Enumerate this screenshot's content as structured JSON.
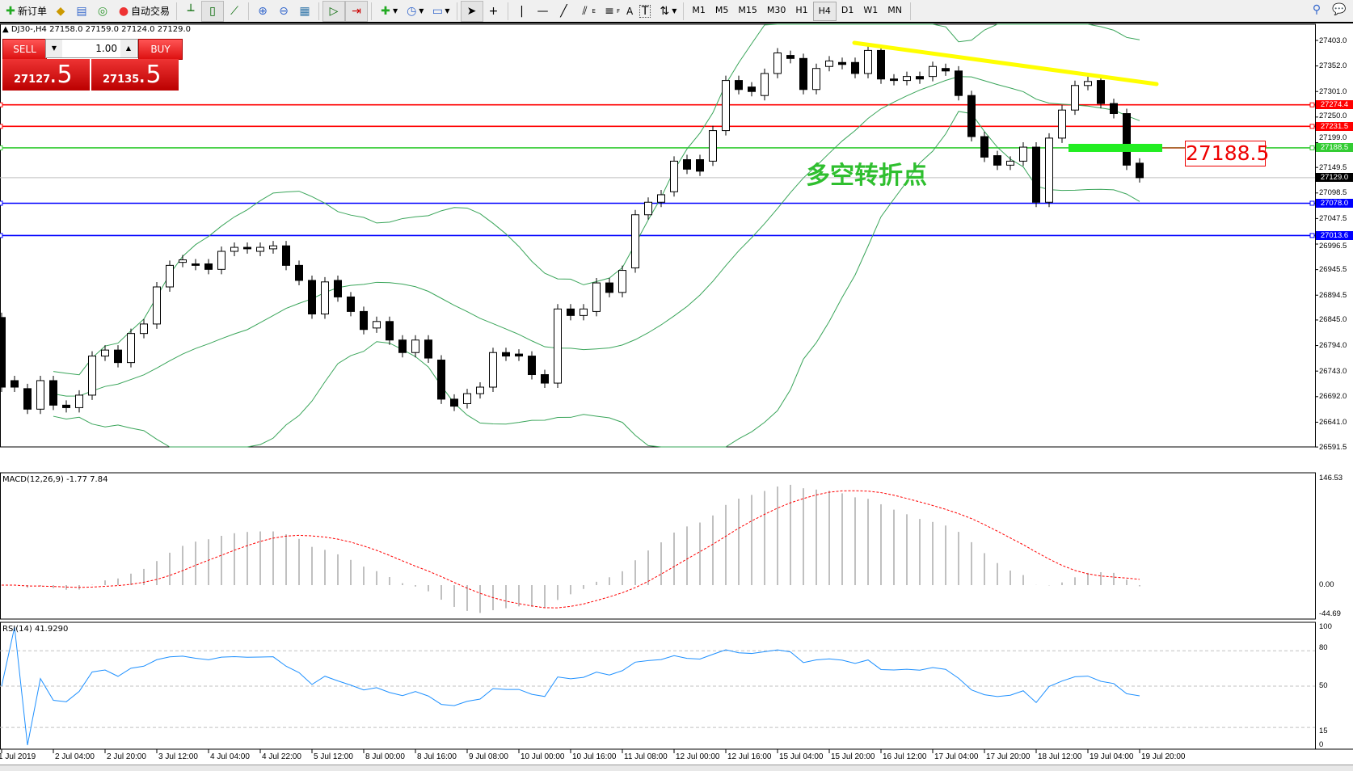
{
  "toolbar": {
    "new_order": "新订单",
    "auto_trading": "自动交易",
    "timeframes": [
      "M1",
      "M5",
      "M15",
      "M30",
      "H1",
      "H4",
      "D1",
      "W1",
      "MN"
    ],
    "active_timeframe": "H4",
    "text_tool": "A",
    "fib_channel_sub": "E",
    "fib_sub": "F"
  },
  "chart_header": "DJ30-,H4  27158.0 27159.0 27124.0 27129.0",
  "one_click": {
    "sell_label": "SELL",
    "buy_label": "BUY",
    "lots": "1.00",
    "sell_main": "27127",
    "sell_frac": ".5",
    "buy_main": "27135",
    "buy_frac": ".5",
    "color": "#d11a1a"
  },
  "price_axis": [
    "27403.0",
    "27352.0",
    "27301.0",
    "27250.0",
    "27199.0",
    "27149.5",
    "27098.5",
    "27047.5",
    "26996.5",
    "26945.5",
    "26894.5",
    "26845.0",
    "26794.0",
    "26743.0",
    "26692.0",
    "26641.0",
    "26591.5"
  ],
  "levels": [
    {
      "price": "27274.4",
      "color": "#ff0000"
    },
    {
      "price": "27231.5",
      "color": "#ff0000"
    },
    {
      "price": "27188.5",
      "color": "#33cc33"
    },
    {
      "price": "27129.0",
      "color": "#000000"
    },
    {
      "price": "27078.0",
      "color": "#0000ff"
    },
    {
      "price": "27013.6",
      "color": "#0000ff"
    }
  ],
  "annotation_price": "27188.5",
  "annotation_text": "多空转折点",
  "trendline_color": "#ffff00",
  "macd": {
    "label": "MACD(12,26,9) -1.77 7.84",
    "axis": [
      "146.53",
      "0.00",
      "-44.69"
    ]
  },
  "rsi": {
    "label": "RSI(14) 41.9290",
    "axis": [
      "100",
      "80",
      "50",
      "15",
      "0"
    ]
  },
  "time_axis": [
    "1 Jul 2019",
    "2 Jul 04:00",
    "2 Jul 20:00",
    "3 Jul 12:00",
    "4 Jul 04:00",
    "4 Jul 22:00",
    "5 Jul 12:00",
    "8 Jul 00:00",
    "8 Jul 16:00",
    "9 Jul 08:00",
    "10 Jul 00:00",
    "10 Jul 16:00",
    "11 Jul 08:00",
    "12 Jul 00:00",
    "12 Jul 16:00",
    "15 Jul 04:00",
    "15 Jul 20:00",
    "16 Jul 12:00",
    "17 Jul 04:00",
    "17 Jul 20:00",
    "18 Jul 12:00",
    "19 Jul 04:00",
    "19 Jul 20:00"
  ],
  "candles_oc": [
    [
      26850,
      26711
    ],
    [
      26724,
      26711
    ],
    [
      26708,
      26667
    ],
    [
      26667,
      26724
    ],
    [
      26724,
      26675
    ],
    [
      26675,
      26670
    ],
    [
      26670,
      26695
    ],
    [
      26695,
      26773
    ],
    [
      26773,
      26785
    ],
    [
      26785,
      26760
    ],
    [
      26760,
      26818
    ],
    [
      26818,
      26837
    ],
    [
      26837,
      26911
    ],
    [
      26911,
      26954
    ],
    [
      26960,
      26965
    ],
    [
      26957,
      26954
    ],
    [
      26957,
      26946
    ],
    [
      26946,
      26982
    ],
    [
      26982,
      26990
    ],
    [
      26990,
      26987
    ],
    [
      26982,
      26990
    ],
    [
      26987,
      26993
    ],
    [
      26993,
      26954
    ],
    [
      26954,
      26924
    ],
    [
      26924,
      26857
    ],
    [
      26857,
      26921
    ],
    [
      26924,
      26891
    ],
    [
      26891,
      26862
    ],
    [
      26862,
      26826
    ],
    [
      26829,
      26842
    ],
    [
      26842,
      26805
    ],
    [
      26805,
      26780
    ],
    [
      26780,
      26805
    ],
    [
      26805,
      26769
    ],
    [
      26765,
      26687
    ],
    [
      26687,
      26673
    ],
    [
      26678,
      26698
    ],
    [
      26698,
      26711
    ],
    [
      26711,
      26780
    ],
    [
      26780,
      26773
    ],
    [
      26777,
      26773
    ],
    [
      26773,
      26736
    ],
    [
      26736,
      26719
    ],
    [
      26719,
      26867
    ],
    [
      26867,
      26854
    ],
    [
      26854,
      26867
    ],
    [
      26862,
      26919
    ],
    [
      26919,
      26900
    ],
    [
      26900,
      26944
    ],
    [
      26949,
      27055
    ],
    [
      27055,
      27080
    ],
    [
      27080,
      27095
    ],
    [
      27101,
      27162
    ],
    [
      27165,
      27146
    ],
    [
      27165,
      27142
    ],
    [
      27162,
      27223
    ],
    [
      27223,
      27323
    ],
    [
      27323,
      27305
    ],
    [
      27310,
      27301
    ],
    [
      27293,
      27337
    ],
    [
      27337,
      27378
    ],
    [
      27373,
      27367
    ],
    [
      27367,
      27305
    ],
    [
      27305,
      27347
    ],
    [
      27351,
      27362
    ],
    [
      27359,
      27355
    ],
    [
      27359,
      27337
    ],
    [
      27337,
      27383
    ],
    [
      27383,
      27326
    ],
    [
      27326,
      27323
    ],
    [
      27323,
      27331
    ],
    [
      27331,
      27326
    ],
    [
      27331,
      27351
    ],
    [
      27347,
      27342
    ],
    [
      27342,
      27293
    ],
    [
      27293,
      27211
    ],
    [
      27211,
      27170
    ],
    [
      27173,
      27154
    ],
    [
      27154,
      27162
    ],
    [
      27162,
      27190
    ],
    [
      27190,
      27080
    ],
    [
      27080,
      27208
    ],
    [
      27208,
      27264
    ],
    [
      27264,
      27313
    ],
    [
      27313,
      27321
    ],
    [
      27323,
      27277
    ],
    [
      27277,
      27257
    ],
    [
      27257,
      27154
    ],
    [
      27158,
      27129
    ]
  ]
}
